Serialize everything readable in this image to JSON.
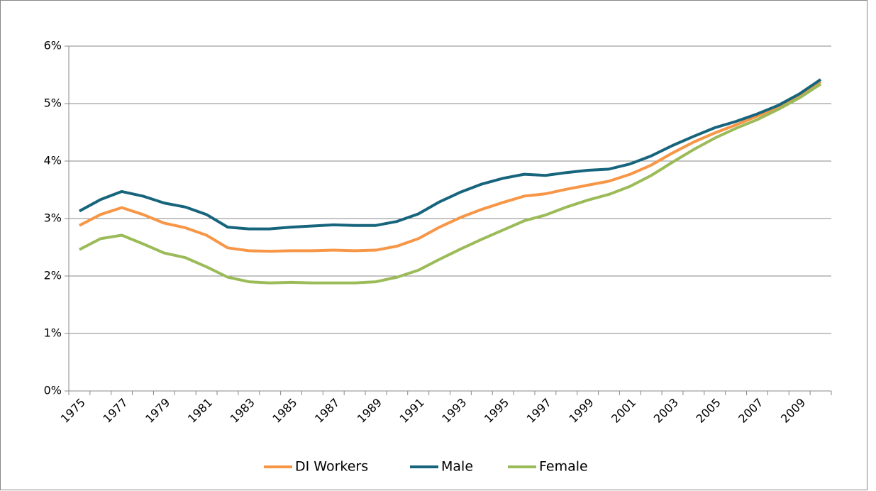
{
  "chart_data": {
    "type": "line",
    "categories": [
      "1975",
      null,
      "1977",
      null,
      "1979",
      null,
      "1981",
      null,
      "1983",
      null,
      "1985",
      null,
      "1987",
      null,
      "1989",
      null,
      "1991",
      null,
      "1993",
      null,
      "1995",
      null,
      "1997",
      null,
      "1999",
      null,
      "2001",
      null,
      "2003",
      null,
      "2005",
      null,
      "2007",
      null,
      "2009",
      null
    ],
    "series": [
      {
        "name": "DI Workers",
        "color": "#f79646",
        "values": [
          2.88,
          3.07,
          3.19,
          3.07,
          2.92,
          2.84,
          2.71,
          2.49,
          2.44,
          2.43,
          2.44,
          2.44,
          2.45,
          2.44,
          2.45,
          2.52,
          2.65,
          2.85,
          3.02,
          3.16,
          3.28,
          3.39,
          3.43,
          3.51,
          3.58,
          3.65,
          3.77,
          3.93,
          4.14,
          4.33,
          4.49,
          4.63,
          4.78,
          4.94,
          5.13,
          5.38
        ]
      },
      {
        "name": "Male",
        "color": "#17657d",
        "values": [
          3.13,
          3.33,
          3.47,
          3.39,
          3.27,
          3.2,
          3.07,
          2.85,
          2.82,
          2.82,
          2.85,
          2.87,
          2.89,
          2.88,
          2.88,
          2.95,
          3.08,
          3.29,
          3.46,
          3.6,
          3.7,
          3.77,
          3.75,
          3.8,
          3.84,
          3.86,
          3.95,
          4.09,
          4.27,
          4.43,
          4.58,
          4.69,
          4.82,
          4.97,
          5.17,
          5.42
        ]
      },
      {
        "name": "Female",
        "color": "#9bbb59",
        "values": [
          2.46,
          2.65,
          2.71,
          2.56,
          2.4,
          2.32,
          2.16,
          1.98,
          1.9,
          1.88,
          1.89,
          1.88,
          1.88,
          1.88,
          1.9,
          1.98,
          2.1,
          2.29,
          2.47,
          2.64,
          2.8,
          2.96,
          3.06,
          3.2,
          3.32,
          3.42,
          3.56,
          3.75,
          3.98,
          4.2,
          4.4,
          4.57,
          4.72,
          4.9,
          5.1,
          5.34
        ]
      }
    ],
    "ylim": [
      0,
      6
    ],
    "yticks": [
      {
        "value": 0,
        "label": "0%"
      },
      {
        "value": 1,
        "label": "1%"
      },
      {
        "value": 2,
        "label": "2%"
      },
      {
        "value": 3,
        "label": "3%"
      },
      {
        "value": 4,
        "label": "4%"
      },
      {
        "value": 5,
        "label": "5%"
      },
      {
        "value": 6,
        "label": "6%"
      }
    ],
    "grid": true,
    "legend": "bottom"
  }
}
